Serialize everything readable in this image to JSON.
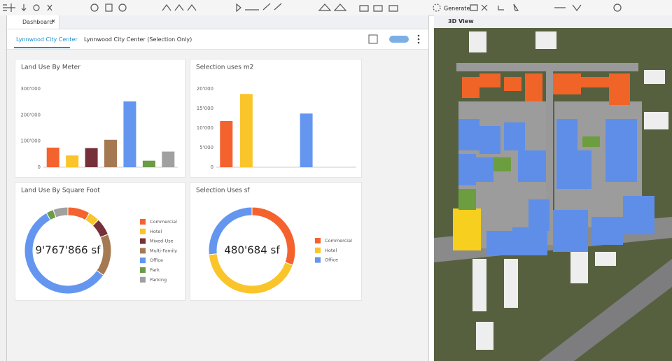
{
  "toolbar": {
    "generate": "Generate"
  },
  "dashboard": {
    "tab": "Dashboard",
    "subtabs": [
      "Lynnwood City Center",
      "Lynnwood City Center (Selection Only)"
    ]
  },
  "view3d": {
    "tab": "3D View"
  },
  "chart_data": [
    {
      "type": "bar",
      "title": "Land Use By Meter",
      "categories": [
        null,
        null,
        null,
        null,
        null,
        null,
        null
      ],
      "values": [
        75000,
        45000,
        73000,
        105000,
        252000,
        25000,
        60000
      ],
      "colors": [
        "#f4622e",
        "#f9c52b",
        "#76303a",
        "#a57a52",
        "#6496f0",
        "#6b9b48",
        "#a0a0a0"
      ],
      "ylim": [
        0,
        300000
      ],
      "yticks": [
        0,
        {
          "value": 100000,
          "label": "100'000"
        },
        {
          "value": 200000,
          "label": "200'000"
        },
        {
          "value": 300000,
          "label": "300'000"
        }
      ],
      "grid": false
    },
    {
      "type": "bar",
      "title": "Selection uses m2",
      "categories": [
        null,
        null,
        null,
        null,
        null,
        null,
        null
      ],
      "values": [
        11800,
        18700,
        0,
        0,
        13700,
        0,
        0
      ],
      "colors": [
        "#f4622e",
        "#f9c52b",
        "#76303a",
        "#a57a52",
        "#6496f0",
        "#6b9b48",
        "#a0a0a0"
      ],
      "ylim": [
        0,
        20000
      ],
      "yticks": [
        0,
        {
          "value": 5000,
          "label": "5'000"
        },
        {
          "value": 10000,
          "label": "10'000"
        },
        {
          "value": 15000,
          "label": "15'000"
        },
        {
          "value": 20000,
          "label": "20'000"
        }
      ],
      "grid": false
    },
    {
      "type": "pie",
      "donut": true,
      "title": "Land Use By Square Foot",
      "center_label": "9'767'866 sf",
      "categories": [
        "Commercial",
        "Hotel",
        "Mixed-Use",
        "Multi-Family",
        "Office",
        "Park",
        "Parking"
      ],
      "values": [
        810000,
        410000,
        625000,
        1545000,
        5570000,
        270000,
        537866
      ],
      "colors": [
        "#f4622e",
        "#f9c52b",
        "#76303a",
        "#a57a52",
        "#6496f0",
        "#6b9b48",
        "#a0a0a0"
      ]
    },
    {
      "type": "pie",
      "donut": true,
      "title": "Selection Uses sf",
      "center_label": "480'684 sf",
      "categories": [
        "Commercial",
        "Hotel",
        "Office"
      ],
      "values": [
        146600,
        206700,
        127384
      ],
      "colors": [
        "#f4622e",
        "#f9c52b",
        "#6496f0"
      ]
    }
  ]
}
